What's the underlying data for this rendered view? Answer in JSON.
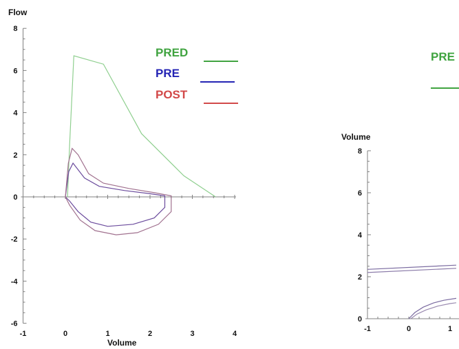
{
  "colors": {
    "pred": "#3fa33f",
    "pre": "#2323b4",
    "post": "#d24848",
    "pred_line": "#8fcf8f",
    "loop": "#8a5a8c",
    "axis": "#808080",
    "text": "#111111"
  },
  "chart_data": [
    {
      "type": "line",
      "title": "",
      "xlabel": "Volume",
      "ylabel": "Flow",
      "xlim": [
        -1,
        4
      ],
      "ylim": [
        -6,
        8
      ],
      "x_ticks": [
        "-1",
        "0",
        "1",
        "2",
        "3",
        "4"
      ],
      "y_ticks": [
        "-6",
        "-4",
        "-2",
        "0",
        "2",
        "4",
        "6",
        "8"
      ],
      "legend": {
        "placement": "top-right",
        "entries": [
          "PRED",
          "PRE",
          "POST"
        ]
      },
      "series": [
        {
          "name": "PRED",
          "color": "#8fcf8f",
          "points": [
            [
              0.05,
              0
            ],
            [
              0.1,
              2.5
            ],
            [
              0.2,
              6.7
            ],
            [
              0.9,
              6.3
            ],
            [
              1.8,
              3.0
            ],
            [
              2.8,
              1.0
            ],
            [
              3.55,
              0
            ]
          ]
        },
        {
          "name": "PRE",
          "color": "#6a4a9c",
          "points": [
            [
              0.0,
              0
            ],
            [
              0.08,
              1.2
            ],
            [
              0.18,
              1.6
            ],
            [
              0.45,
              0.9
            ],
            [
              0.8,
              0.5
            ],
            [
              1.4,
              0.3
            ],
            [
              2.0,
              0.15
            ],
            [
              2.35,
              0.05
            ],
            [
              2.35,
              -0.5
            ],
            [
              2.1,
              -1.0
            ],
            [
              1.6,
              -1.3
            ],
            [
              1.0,
              -1.4
            ],
            [
              0.6,
              -1.2
            ],
            [
              0.3,
              -0.7
            ],
            [
              0.1,
              -0.2
            ],
            [
              0.0,
              0
            ]
          ]
        },
        {
          "name": "POST",
          "color": "#a0708e",
          "points": [
            [
              0.0,
              0
            ],
            [
              0.07,
              1.6
            ],
            [
              0.16,
              2.3
            ],
            [
              0.3,
              2.0
            ],
            [
              0.55,
              1.1
            ],
            [
              0.9,
              0.65
            ],
            [
              1.5,
              0.4
            ],
            [
              2.1,
              0.2
            ],
            [
              2.5,
              0.05
            ],
            [
              2.5,
              -0.7
            ],
            [
              2.2,
              -1.3
            ],
            [
              1.7,
              -1.7
            ],
            [
              1.2,
              -1.8
            ],
            [
              0.7,
              -1.6
            ],
            [
              0.35,
              -1.1
            ],
            [
              0.1,
              -0.4
            ],
            [
              0.0,
              0
            ]
          ]
        }
      ]
    },
    {
      "type": "line",
      "title": "",
      "xlabel": "",
      "ylabel": "Volume",
      "xlim": [
        -1,
        1
      ],
      "ylim": [
        0,
        8
      ],
      "x_ticks": [
        "-1",
        "0",
        "1"
      ],
      "y_ticks": [
        "0",
        "2",
        "4",
        "6",
        "8"
      ],
      "legend": {
        "placement": "top-right",
        "entries": [
          "PRE"
        ]
      },
      "series": [
        {
          "name": "",
          "color": "#7a6aa0",
          "points": [
            [
              -1.0,
              2.35
            ],
            [
              1.15,
              2.55
            ]
          ]
        },
        {
          "name": "",
          "color": "#8a7aa8",
          "points": [
            [
              -1.0,
              2.2
            ],
            [
              1.15,
              2.4
            ]
          ]
        },
        {
          "name": "",
          "color": "#7a6aa0",
          "points": [
            [
              0.0,
              0.0
            ],
            [
              0.15,
              0.3
            ],
            [
              0.35,
              0.55
            ],
            [
              0.6,
              0.75
            ],
            [
              0.85,
              0.88
            ],
            [
              1.15,
              0.97
            ]
          ]
        },
        {
          "name": "",
          "color": "#9a8ab0",
          "points": [
            [
              0.05,
              0.0
            ],
            [
              0.2,
              0.22
            ],
            [
              0.42,
              0.42
            ],
            [
              0.7,
              0.6
            ],
            [
              1.0,
              0.72
            ],
            [
              1.15,
              0.76
            ]
          ]
        }
      ]
    }
  ]
}
